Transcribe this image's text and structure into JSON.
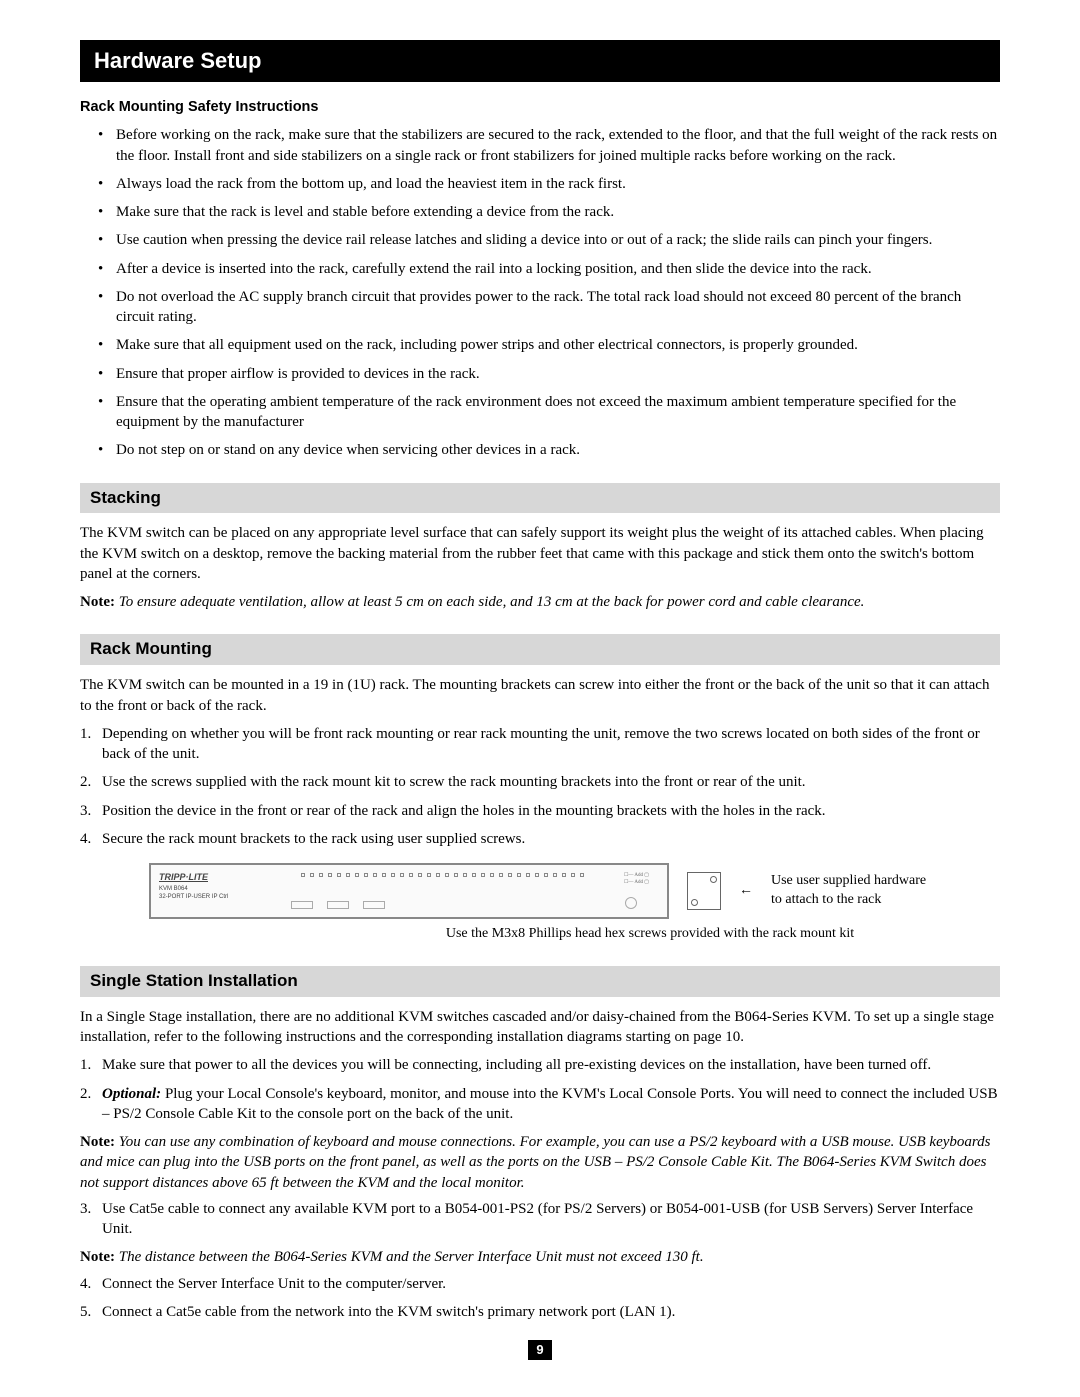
{
  "title": "Hardware Setup",
  "safety_heading": "Rack Mounting Safety Instructions",
  "safety_items": [
    "Before working on the rack, make sure that the stabilizers are secured to the rack, extended to the floor, and that the full weight of the rack rests on the floor. Install front and side stabilizers on a single rack or front stabilizers for joined multiple racks before working on the rack.",
    "Always load the rack from the bottom up, and load the heaviest item in the rack first.",
    "Make sure that the rack is level and stable before extending a device from the rack.",
    "Use caution when pressing the device rail release latches and sliding a device into or out of a rack; the slide rails can pinch your fingers.",
    "After a device is inserted into the rack, carefully extend the rail into a locking position, and then slide the device into the rack.",
    "Do not overload the AC supply branch circuit that provides power to the rack. The total rack load should not exceed 80 percent of the branch circuit rating.",
    "Make sure that all equipment used on the rack, including power strips and other electrical connectors, is properly grounded.",
    "Ensure that proper airflow is provided to devices in the rack.",
    "Ensure that the operating ambient temperature of the rack environment does not exceed the maximum ambient temperature specified for the equipment by the manufacturer",
    "Do not step on or stand on any device when servicing other devices in a rack."
  ],
  "stacking": {
    "heading": "Stacking",
    "body": "The KVM switch can be placed on any appropriate level surface that can safely support its weight plus the weight of its attached cables. When placing the KVM switch on a desktop, remove the backing material from the rubber feet that came with this package and stick them onto the switch's bottom panel at the corners.",
    "note_label": "Note:",
    "note_body": "To ensure adequate ventilation, allow at least 5 cm on each side, and 13 cm at the back for power cord and cable clearance."
  },
  "rackmount": {
    "heading": "Rack Mounting",
    "intro": "The KVM switch can be mounted in a 19 in (1U) rack. The mounting brackets can screw into either the front or the back of the unit so that it can attach to the front or back of the rack.",
    "steps": [
      "Depending on whether you will be front rack mounting or rear rack mounting the unit, remove the two screws located on both sides of the front or back of the unit.",
      "Use the screws supplied with the rack mount kit to screw the rack mounting brackets into the front or rear of the unit.",
      "Position the device in the front or rear of the rack and align the holes in the mounting brackets with the holes in the rack.",
      "Secure the rack mount brackets to the rack using user supplied screws."
    ],
    "diagram": {
      "logo": "TRIPP·LITE",
      "callout": "Use user supplied hardware to attach to the rack",
      "caption": "Use the M3x8 Phillips head hex screws provided with the rack mount kit"
    }
  },
  "single": {
    "heading": "Single Station Installation",
    "intro": "In a Single Stage installation, there are no additional KVM switches cascaded and/or daisy-chained from the B064-Series KVM. To set up a single stage installation, refer to the following instructions and the corresponding installation diagrams starting on page 10.",
    "step1": "Make sure that power to all the devices you will be connecting, including all pre-existing devices on the installation, have been turned off.",
    "step2_label": "Optional:",
    "step2_body": " Plug your Local Console's keyboard, monitor, and mouse into the KVM's Local Console Ports. You will need to connect the included USB – PS/2 Console Cable Kit to the console port on the back of the unit.",
    "note1_label": "Note:",
    "note1_body": "You can use any combination of keyboard and mouse connections. For example, you can use a PS/2 keyboard with a USB mouse. USB keyboards and mice can plug into the USB ports on the front panel, as well as the ports on the USB – PS/2 Console Cable Kit. The B064-Series KVM Switch does not support distances above 65 ft between the KVM and the local monitor.",
    "step3": "Use Cat5e cable to connect any available KVM port to a B054-001-PS2 (for PS/2 Servers) or B054-001-USB (for USB Servers) Server Interface Unit.",
    "note2_label": "Note:",
    "note2_body": "The distance between the B064-Series KVM and the Server Interface Unit must not exceed 130 ft.",
    "step4": "Connect the Server Interface Unit to the computer/server.",
    "step5": "Connect a Cat5e cable from the network into the KVM switch's primary network port (LAN 1)."
  },
  "page_number": "9"
}
